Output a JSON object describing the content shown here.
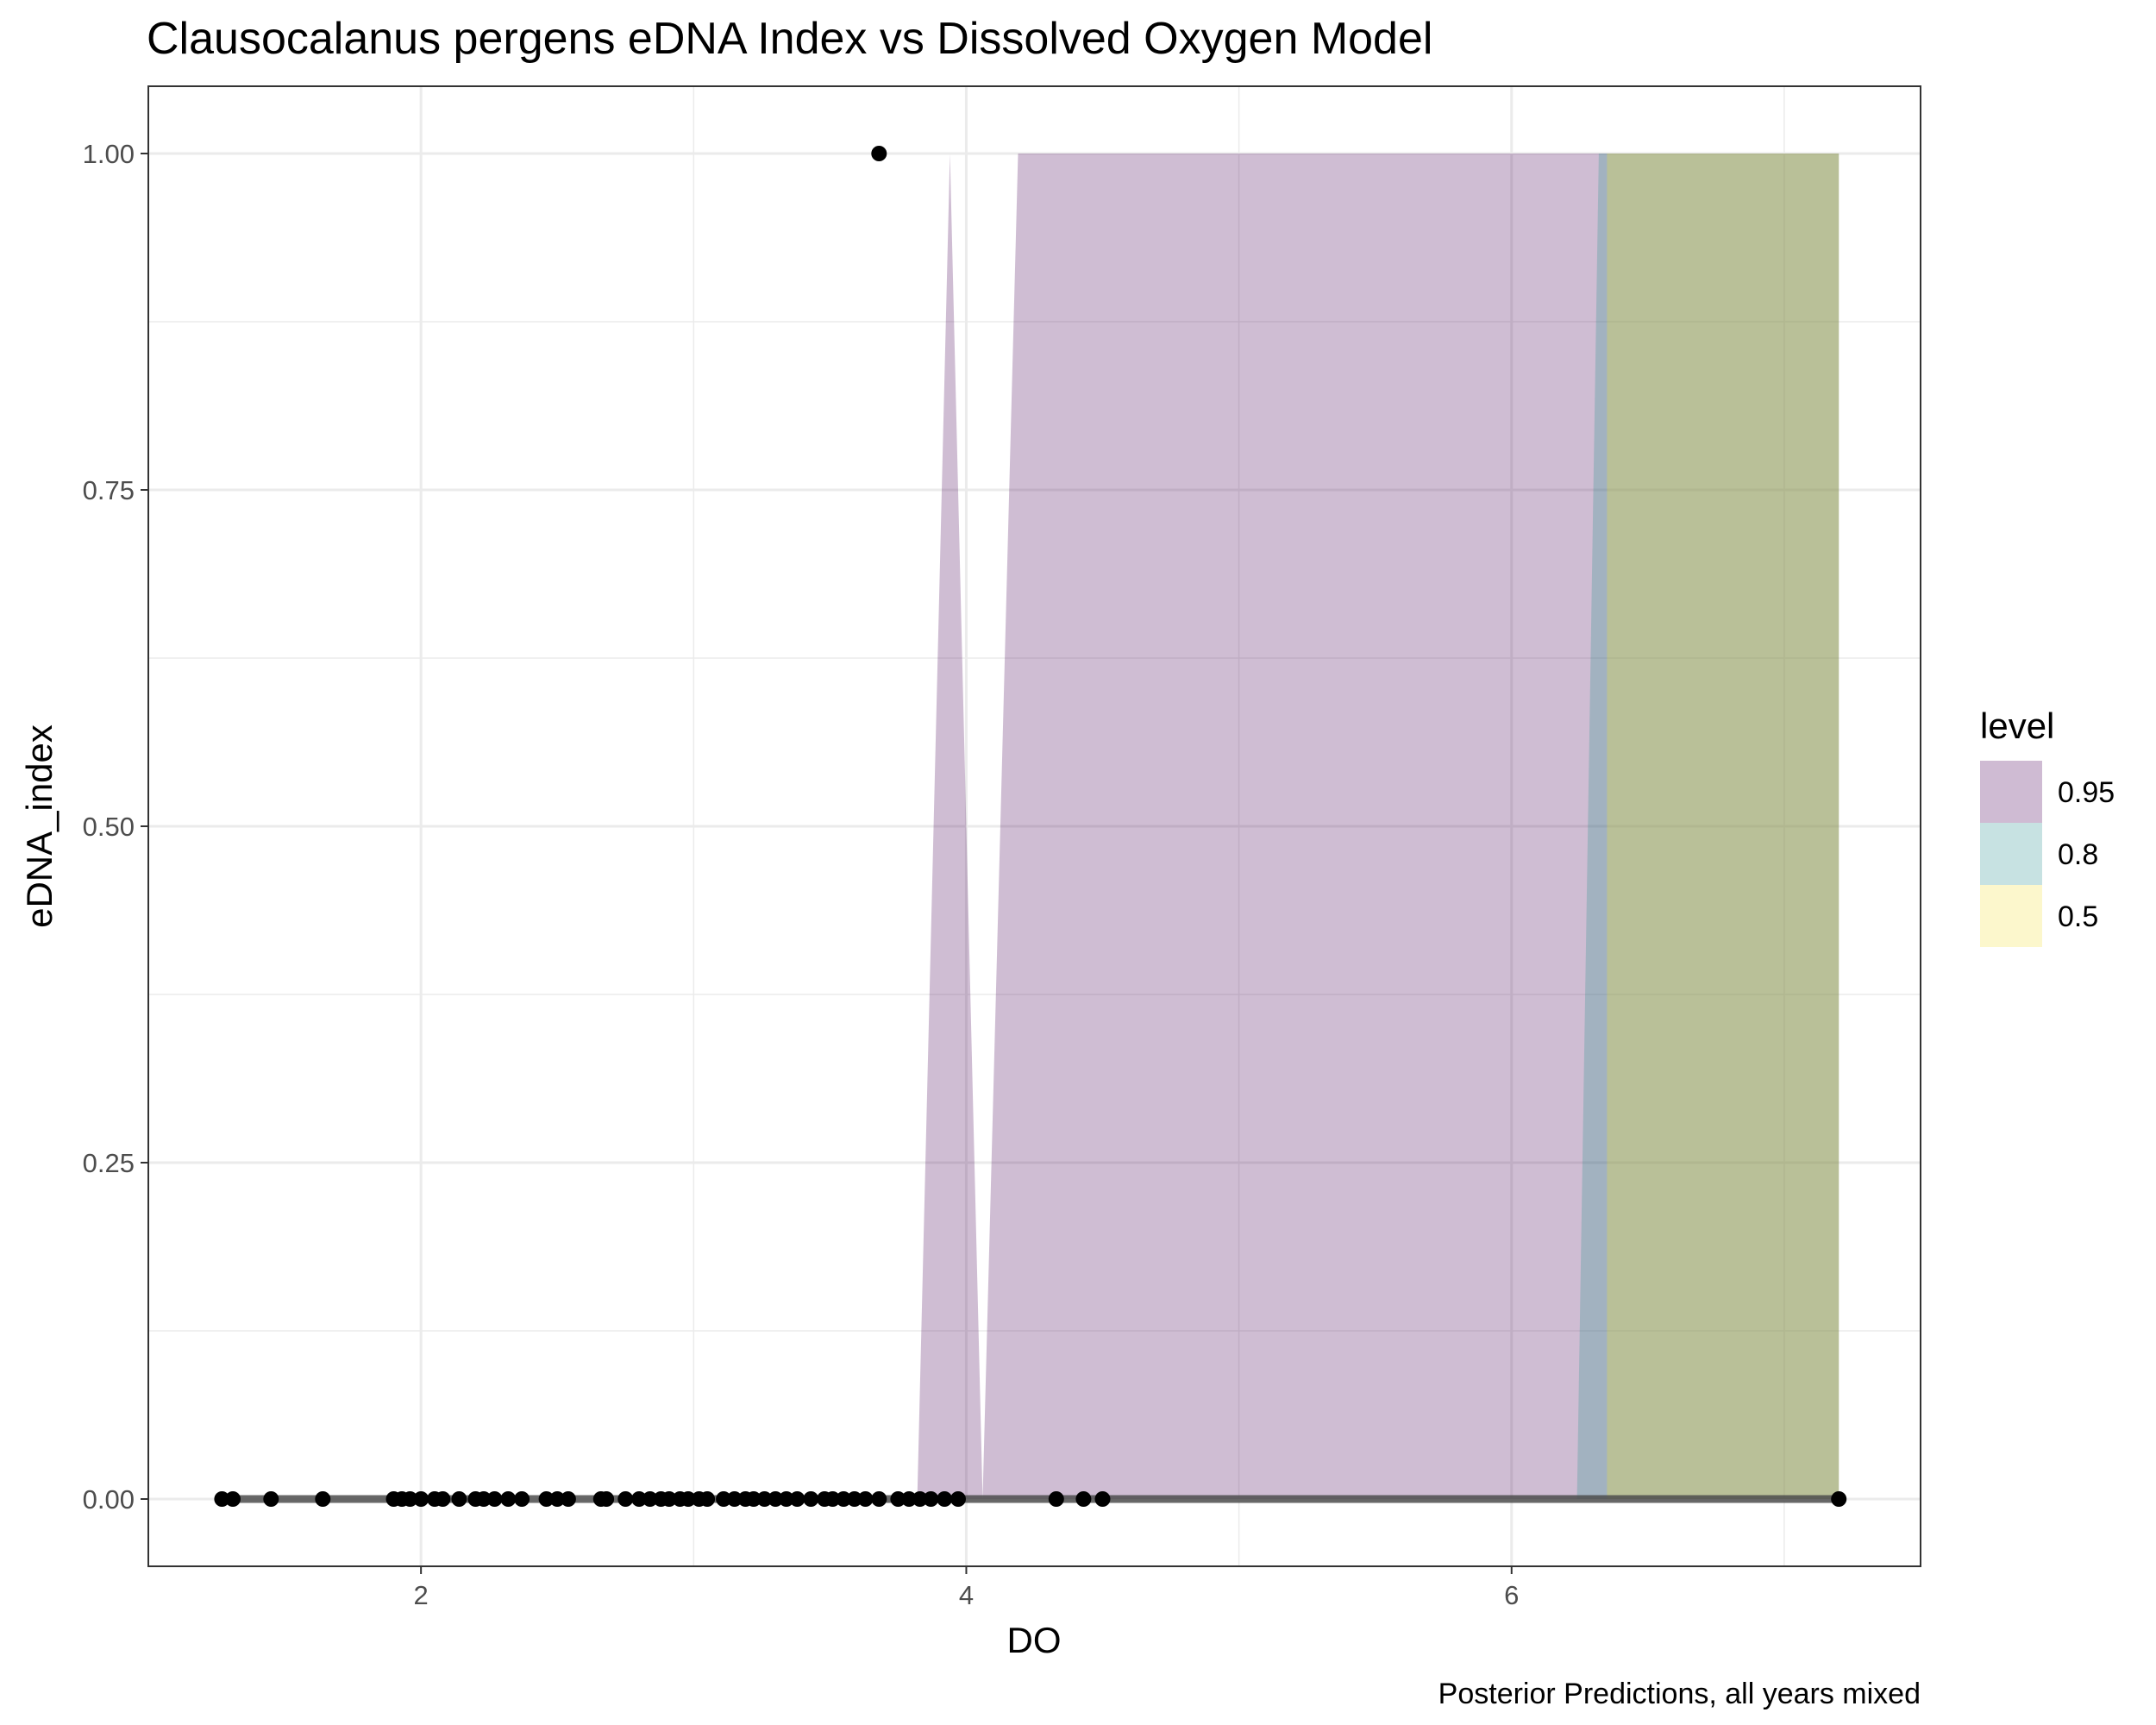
{
  "chart_data": {
    "type": "area",
    "title": "Clausocalanus pergens eDNA Index vs Dissolved Oxygen Model",
    "caption": "Posterior Predictions, all years mixed",
    "xlabel": "DO",
    "ylabel": "eDNA_index",
    "xlim": [
      1.0,
      7.5
    ],
    "ylim": [
      -0.05,
      1.05
    ],
    "x_ticks": [
      2,
      4,
      6
    ],
    "x_tick_labels": [
      "2",
      "4",
      "6"
    ],
    "y_ticks": [
      0,
      0.25,
      0.5,
      0.75,
      1.0
    ],
    "y_tick_labels": [
      "0.00",
      "0.25",
      "0.50",
      "0.75",
      "1.00"
    ],
    "grid": true,
    "legend": {
      "title": "level",
      "position": "right",
      "entries": [
        {
          "label": "0.95",
          "color": "#CFBBD3"
        },
        {
          "label": "0.8",
          "color": "#C7E2E2"
        },
        {
          "label": "0.5",
          "color": "#FCF7CC"
        }
      ]
    },
    "bands": [
      {
        "level": "0.95",
        "color": "#440154",
        "opacity": 0.26,
        "points": [
          [
            3.82,
            0.0
          ],
          [
            3.94,
            1.0
          ],
          [
            4.06,
            0.0
          ],
          [
            4.19,
            1.0
          ],
          [
            6.35,
            1.0
          ],
          [
            7.2,
            1.0
          ],
          [
            7.2,
            0.0
          ],
          [
            3.82,
            0.0
          ]
        ]
      },
      {
        "level": "0.8",
        "color": "#21918C",
        "opacity": 0.26,
        "points": [
          [
            6.24,
            0.0
          ],
          [
            6.32,
            1.0
          ],
          [
            7.2,
            1.0
          ],
          [
            7.2,
            0.0
          ]
        ]
      },
      {
        "level": "0.5",
        "color": "#FDE725",
        "opacity": 0.26,
        "points": [
          [
            6.35,
            0.0
          ],
          [
            6.35,
            1.0
          ],
          [
            7.2,
            1.0
          ],
          [
            7.2,
            0.0
          ]
        ]
      }
    ],
    "median_line": {
      "color": "#4d4d4d",
      "x": [
        1.27,
        7.2
      ],
      "y": [
        0.0,
        0.0
      ]
    },
    "points": {
      "color": "#000000",
      "x": [
        1.27,
        1.31,
        1.45,
        1.64,
        1.9,
        1.93,
        1.96,
        2.0,
        2.05,
        2.08,
        2.14,
        2.2,
        2.23,
        2.27,
        2.32,
        2.37,
        2.46,
        2.5,
        2.54,
        2.66,
        2.68,
        2.75,
        2.8,
        2.84,
        2.88,
        2.91,
        2.95,
        2.98,
        3.02,
        3.05,
        3.11,
        3.15,
        3.19,
        3.22,
        3.26,
        3.3,
        3.34,
        3.38,
        3.43,
        3.48,
        3.51,
        3.55,
        3.59,
        3.63,
        3.68,
        3.75,
        3.79,
        3.83,
        3.87,
        3.92,
        3.97,
        4.33,
        4.43,
        4.5,
        7.2,
        3.68
      ],
      "y": [
        0,
        0,
        0,
        0,
        0,
        0,
        0,
        0,
        0,
        0,
        0,
        0,
        0,
        0,
        0,
        0,
        0,
        0,
        0,
        0,
        0,
        0,
        0,
        0,
        0,
        0,
        0,
        0,
        0,
        0,
        0,
        0,
        0,
        0,
        0,
        0,
        0,
        0,
        0,
        0,
        0,
        0,
        0,
        0,
        0,
        0,
        0,
        0,
        0,
        0,
        0,
        0,
        0,
        0,
        0,
        1.0
      ]
    }
  }
}
